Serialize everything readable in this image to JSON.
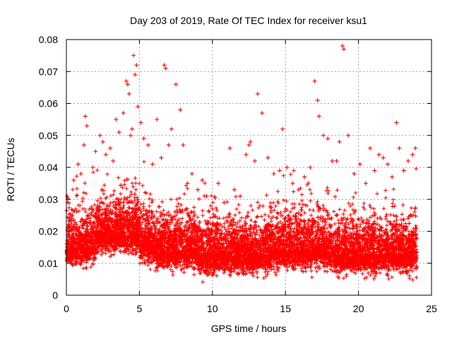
{
  "chart_data": {
    "type": "scatter",
    "title": "Day 203 of 2019, Rate Of TEC Index for receiver ksu1",
    "xlabel": "GPS time / hours",
    "ylabel": "ROTI / TECUs",
    "xlim": [
      0,
      25
    ],
    "ylim": [
      0,
      0.08
    ],
    "x_ticks": [
      "0",
      "5",
      "10",
      "15",
      "20",
      "25"
    ],
    "y_ticks": [
      "0",
      "0.01",
      "0.02",
      "0.03",
      "0.04",
      "0.05",
      "0.06",
      "0.07",
      "0.08"
    ],
    "grid": true,
    "marker": "+",
    "color": "#ff0000",
    "series": [
      {
        "x": [
          0.05,
          0.1,
          0.3,
          0.5,
          0.8,
          1.0,
          1.2,
          1.3,
          1.4,
          1.5,
          1.8,
          2.0,
          2.3,
          2.5,
          2.7,
          3.0,
          3.2,
          3.4,
          3.6,
          3.9,
          4.1,
          4.2,
          4.3,
          4.4,
          4.5,
          4.6,
          4.7,
          4.8,
          4.9,
          5.1,
          5.3,
          5.6,
          5.9,
          6.2,
          6.5,
          6.7,
          6.8,
          7.0,
          7.2,
          7.5,
          7.8,
          8.0,
          8.3,
          8.6,
          9.0,
          9.3,
          9.6,
          10.0,
          10.4,
          10.8,
          11.2,
          11.5,
          11.9,
          12.3,
          12.5,
          12.6,
          12.9,
          13.1,
          13.4,
          13.8,
          14.2,
          14.6,
          14.8,
          15.1,
          15.5,
          15.9,
          16.3,
          16.7,
          17.0,
          17.2,
          17.3,
          17.6,
          17.9,
          18.2,
          18.5,
          18.7,
          18.9,
          19.0,
          19.3,
          19.7,
          20.1,
          20.5,
          20.8,
          21.1,
          21.4,
          21.7,
          22.0,
          22.3,
          22.6,
          22.8,
          23.1,
          23.4,
          23.7,
          23.9
        ],
        "y": [
          0.031,
          0.03,
          0.018,
          0.036,
          0.041,
          0.038,
          0.047,
          0.056,
          0.053,
          0.025,
          0.04,
          0.045,
          0.05,
          0.048,
          0.044,
          0.046,
          0.042,
          0.055,
          0.051,
          0.057,
          0.067,
          0.066,
          0.063,
          0.05,
          0.052,
          0.075,
          0.069,
          0.072,
          0.059,
          0.054,
          0.049,
          0.047,
          0.041,
          0.055,
          0.043,
          0.072,
          0.071,
          0.047,
          0.052,
          0.066,
          0.058,
          0.047,
          0.035,
          0.038,
          0.033,
          0.036,
          0.031,
          0.027,
          0.035,
          0.029,
          0.046,
          0.033,
          0.031,
          0.044,
          0.047,
          0.048,
          0.042,
          0.063,
          0.057,
          0.043,
          0.038,
          0.039,
          0.052,
          0.04,
          0.035,
          0.033,
          0.037,
          0.04,
          0.067,
          0.061,
          0.056,
          0.05,
          0.049,
          0.042,
          0.042,
          0.048,
          0.078,
          0.077,
          0.05,
          0.038,
          0.041,
          0.035,
          0.046,
          0.039,
          0.044,
          0.043,
          0.041,
          0.037,
          0.054,
          0.046,
          0.039,
          0.042,
          0.044,
          0.046
        ]
      }
    ]
  }
}
